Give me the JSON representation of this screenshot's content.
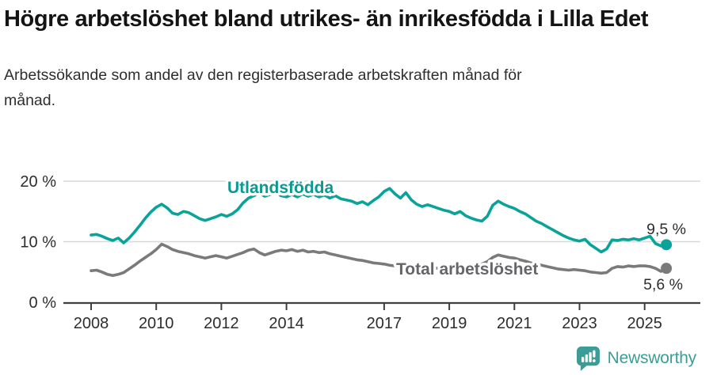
{
  "header": {
    "title": "Högre arbetslöshet bland utrikes- än inrikesfödda i Lilla Edet",
    "subtitle": "Arbetssökande som andel av den registerbaserade arbetskraften månad för månad."
  },
  "footer": {
    "brand": "Newsworthy",
    "brand_color": "#3c9d96",
    "logo_icon": "bar-chart-speech-bubble-icon"
  },
  "chart_data": {
    "type": "line",
    "title": "Högre arbetslöshet bland utrikes- än inrikesfödda i Lilla Edet",
    "subtitle": "Arbetssökande som andel av den registerbaserade arbetskraften månad för månad.",
    "grid": "horizontal",
    "legend_position": "inline-labels",
    "x_axis": {
      "tick_labels": [
        "2008",
        "2010",
        "2012",
        "2014",
        "2017",
        "2019",
        "2021",
        "2023",
        "2025"
      ],
      "tick_years": [
        2008,
        2010,
        2012,
        2014,
        2017,
        2019,
        2021,
        2023,
        2025
      ]
    },
    "y_axis": {
      "ticks": [
        {
          "value": 20,
          "label": "20 %"
        },
        {
          "value": 10,
          "label": "10 %"
        },
        {
          "value": 0,
          "label": "0 %"
        }
      ],
      "range": [
        0,
        22
      ]
    },
    "series_start_year": 2008.0,
    "series_step_years": 0.166667,
    "series": [
      {
        "name": "Utlandsfödda",
        "color": "#09a39a",
        "label_color": "#0a9a91",
        "end_label": "9,5 %",
        "end_value": 9.5,
        "values": [
          11.1,
          11.2,
          10.9,
          10.5,
          10.2,
          10.6,
          9.8,
          10.6,
          11.6,
          12.7,
          13.9,
          14.9,
          15.7,
          16.2,
          15.6,
          14.7,
          14.5,
          15.0,
          14.8,
          14.3,
          13.8,
          13.5,
          13.8,
          14.1,
          14.5,
          14.2,
          14.6,
          15.3,
          16.4,
          17.2,
          17.6,
          18.0,
          17.5,
          17.8,
          18.1,
          17.6,
          17.4,
          17.8,
          17.4,
          17.9,
          17.5,
          17.8,
          17.4,
          17.7,
          17.2,
          17.6,
          17.1,
          16.9,
          16.7,
          16.3,
          16.6,
          16.1,
          16.8,
          17.4,
          18.3,
          18.8,
          17.9,
          17.2,
          18.1,
          16.9,
          16.2,
          15.8,
          16.1,
          15.8,
          15.5,
          15.2,
          15.0,
          14.6,
          15.0,
          14.3,
          13.9,
          13.6,
          13.4,
          14.2,
          16.0,
          16.7,
          16.2,
          15.8,
          15.5,
          15.0,
          14.6,
          14.0,
          13.4,
          13.0,
          12.5,
          12.0,
          11.5,
          11.0,
          10.6,
          10.3,
          10.1,
          10.4,
          9.5,
          8.9,
          8.3,
          8.8,
          10.3,
          10.2,
          10.4,
          10.3,
          10.5,
          10.3,
          10.6,
          10.9,
          9.7,
          9.3,
          9.5
        ]
      },
      {
        "name": "Total arbetslöshet",
        "color": "#7a7a7a",
        "label_color": "#65656a",
        "end_label": "5,6 %",
        "end_value": 5.6,
        "values": [
          5.2,
          5.3,
          5.0,
          4.6,
          4.4,
          4.6,
          4.9,
          5.5,
          6.1,
          6.8,
          7.4,
          8.0,
          8.7,
          9.6,
          9.2,
          8.7,
          8.4,
          8.2,
          8.0,
          7.7,
          7.5,
          7.3,
          7.5,
          7.7,
          7.5,
          7.3,
          7.6,
          7.9,
          8.2,
          8.6,
          8.8,
          8.2,
          7.8,
          8.1,
          8.4,
          8.6,
          8.5,
          8.7,
          8.4,
          8.6,
          8.3,
          8.4,
          8.2,
          8.3,
          8.0,
          7.8,
          7.6,
          7.4,
          7.2,
          7.0,
          6.9,
          6.7,
          6.5,
          6.4,
          6.3,
          6.1,
          6.0,
          5.9,
          6.0,
          5.9,
          5.8,
          5.7,
          5.6,
          5.7,
          5.6,
          5.7,
          5.8,
          5.9,
          5.8,
          5.9,
          6.0,
          6.1,
          6.3,
          6.7,
          7.4,
          7.8,
          7.6,
          7.4,
          7.3,
          7.0,
          6.8,
          6.5,
          6.3,
          6.1,
          5.9,
          5.7,
          5.5,
          5.4,
          5.3,
          5.4,
          5.3,
          5.2,
          5.0,
          4.9,
          4.8,
          4.9,
          5.6,
          5.9,
          5.8,
          6.0,
          5.9,
          6.0,
          6.0,
          5.9,
          5.6,
          5.1,
          5.6
        ]
      }
    ],
    "annotations": {
      "axis_color": "#3f3f3f",
      "grid_color": "#d8d8d8",
      "tick_label_color": "#2d2d2d"
    }
  }
}
